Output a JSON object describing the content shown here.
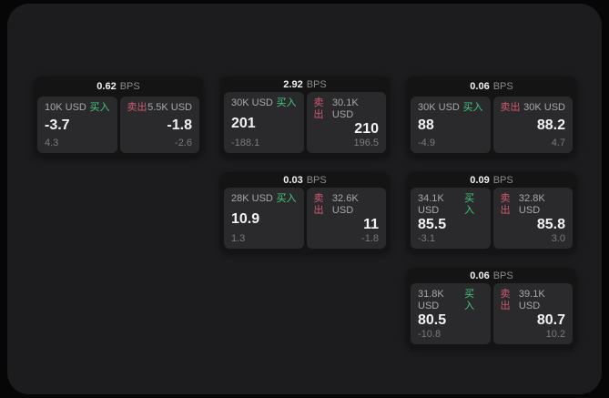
{
  "labels": {
    "bps_unit": "BPS",
    "buy": "买入",
    "sell": "卖出"
  },
  "colors": {
    "page_bg": "#060606",
    "panel_bg": "#1c1c1e",
    "card_bg": "#141415",
    "tile_bg": "#2a2a2c",
    "buy_green": "#44c97f",
    "sell_red": "#d15a6e",
    "text_primary": "#f2f2f2",
    "text_secondary": "#a8a8a8",
    "text_muted": "#7a7a7a"
  },
  "cards": [
    {
      "bps": "0.62",
      "buy": {
        "amount": "10K USD",
        "price": "-3.7",
        "change": "4.3"
      },
      "sell": {
        "amount": "5.5K USD",
        "price": "-1.8",
        "change": "-2.6"
      }
    },
    {
      "bps": "2.92",
      "buy": {
        "amount": "30K USD",
        "price": "201",
        "change": "-188.1"
      },
      "sell": {
        "amount": "30.1K USD",
        "price": "210",
        "change": "196.5"
      }
    },
    {
      "bps": "0.06",
      "buy": {
        "amount": "30K USD",
        "price": "88",
        "change": "-4.9"
      },
      "sell": {
        "amount": "30K USD",
        "price": "88.2",
        "change": "4.7"
      }
    },
    {
      "bps": "0.03",
      "buy": {
        "amount": "28K USD",
        "price": "10.9",
        "change": "1.3"
      },
      "sell": {
        "amount": "32.6K USD",
        "price": "11",
        "change": "-1.8"
      }
    },
    {
      "bps": "0.09",
      "buy": {
        "amount": "34.1K USD",
        "price": "85.5",
        "change": "-3.1"
      },
      "sell": {
        "amount": "32.8K USD",
        "price": "85.8",
        "change": "3.0"
      }
    },
    {
      "bps": "0.06",
      "buy": {
        "amount": "31.8K USD",
        "price": "80.5",
        "change": "-10.8"
      },
      "sell": {
        "amount": "39.1K USD",
        "price": "80.7",
        "change": "10.2"
      }
    }
  ]
}
